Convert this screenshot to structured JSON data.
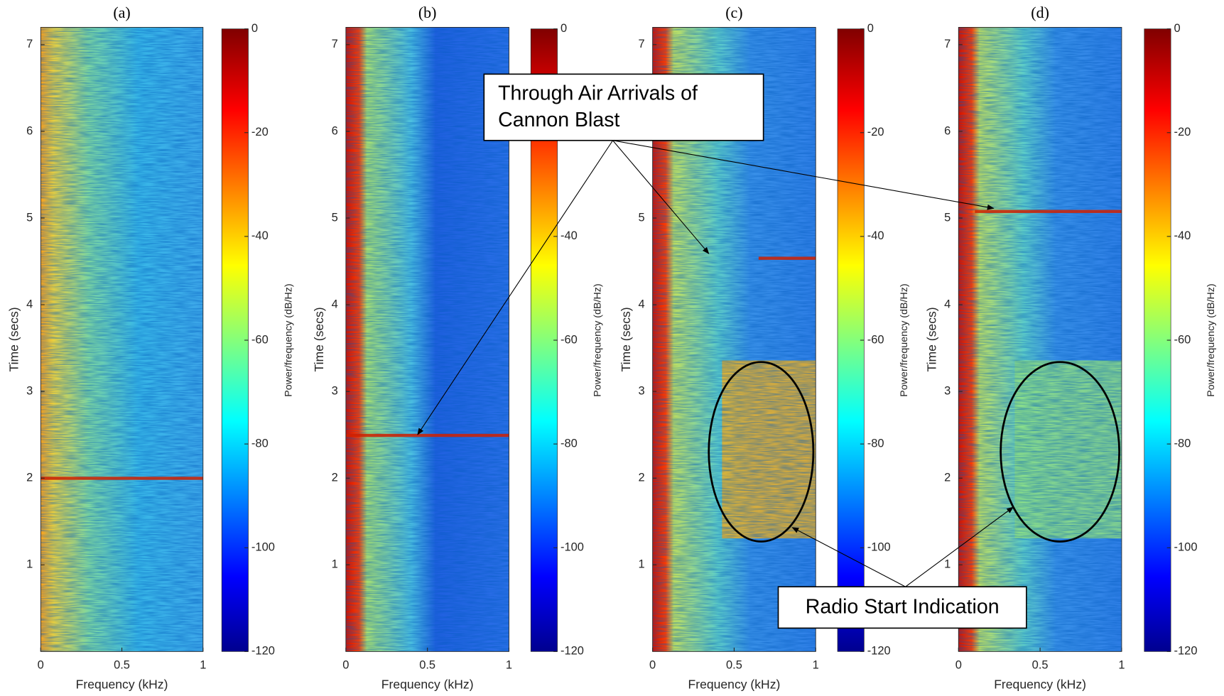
{
  "chart_data": [
    {
      "type": "spectrogram",
      "title": "(a)",
      "xlabel": "Frequency (kHz)",
      "ylabel": "Time (secs)",
      "xlim": [
        0,
        1
      ],
      "xticks": [
        0,
        0.5,
        1
      ],
      "ylim": [
        0,
        7.2
      ],
      "yticks": [
        1,
        2,
        3,
        4,
        5,
        6,
        7
      ],
      "colorbar": {
        "label": "Power/frequency (dB/Hz)",
        "clim": [
          -120,
          0
        ],
        "ticks": [
          -120,
          -100,
          -80,
          -60,
          -40,
          -20,
          0
        ]
      }
    },
    {
      "type": "spectrogram",
      "title": "(b)",
      "xlabel": "Frequency (kHz)",
      "ylabel": "Time (secs)",
      "xlim": [
        0,
        1
      ],
      "xticks": [
        0,
        0.5,
        1
      ],
      "ylim": [
        0,
        7.2
      ],
      "yticks": [
        1,
        2,
        3,
        4,
        5,
        6,
        7
      ],
      "colorbar": {
        "label": "Power/frequency (dB/Hz)",
        "clim": [
          -120,
          0
        ],
        "ticks": [
          -120,
          -100,
          -80,
          -60,
          -40,
          -20,
          0
        ]
      }
    },
    {
      "type": "spectrogram",
      "title": "(c)",
      "xlabel": "Frequency (kHz)",
      "ylabel": "Time (secs)",
      "xlim": [
        0,
        1
      ],
      "xticks": [
        0,
        0.5,
        1
      ],
      "ylim": [
        0,
        7.2
      ],
      "yticks": [
        1,
        2,
        3,
        4,
        5,
        6,
        7
      ],
      "colorbar": {
        "label": "Power/frequency (dB/Hz)",
        "clim": [
          -120,
          0
        ],
        "ticks": [
          -120,
          -100,
          -80,
          -60,
          -40,
          -20,
          0
        ]
      }
    },
    {
      "type": "spectrogram",
      "title": "(d)",
      "xlabel": "Frequency (kHz)",
      "ylabel": "Time (secs)",
      "xlim": [
        0,
        1
      ],
      "xticks": [
        0,
        0.5,
        1
      ],
      "ylim": [
        0,
        7.2
      ],
      "yticks": [
        1,
        2,
        3,
        4,
        5,
        6,
        7
      ],
      "colorbar": {
        "label": "Power/frequency (dB/Hz)",
        "clim": [
          -120,
          0
        ],
        "ticks": [
          -120,
          -100,
          -80,
          -60,
          -40,
          -20,
          0
        ]
      }
    }
  ],
  "annotations": {
    "through_air": [
      "Through Air Arrivals of",
      "Cannon Blast"
    ],
    "radio_start": "Radio Start Indication"
  }
}
